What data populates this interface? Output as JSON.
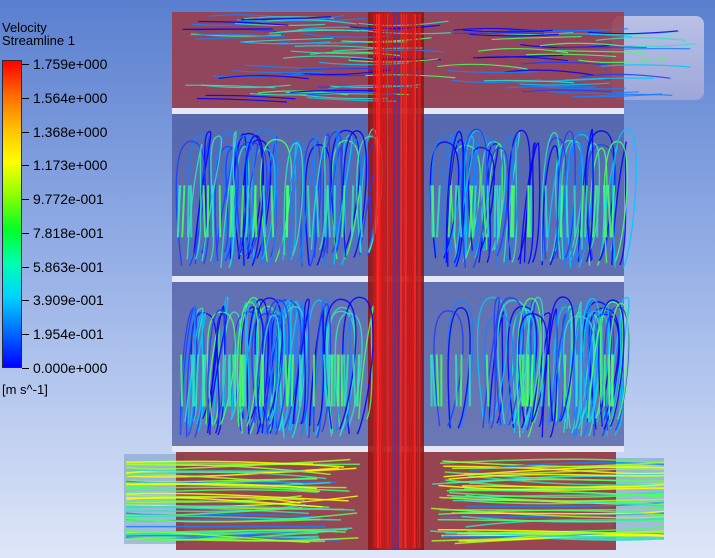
{
  "legend": {
    "title": "Velocity",
    "subtitle": "Streamline 1",
    "units": "[m s^-1]",
    "ticks": [
      "1.759e+000",
      "1.564e+000",
      "1.368e+000",
      "1.173e+000",
      "9.772e-001",
      "7.818e-001",
      "5.863e-001",
      "3.909e-001",
      "1.954e-001",
      "0.000e+000"
    ]
  },
  "colors": {
    "background_top": "#5a7fcf",
    "background_bottom": "#dfe7f8",
    "shaft_red": "#b01818",
    "streamline_high": "#ff0000",
    "streamline_mid": "#33e0c0",
    "streamline_low": "#0000ff"
  }
}
